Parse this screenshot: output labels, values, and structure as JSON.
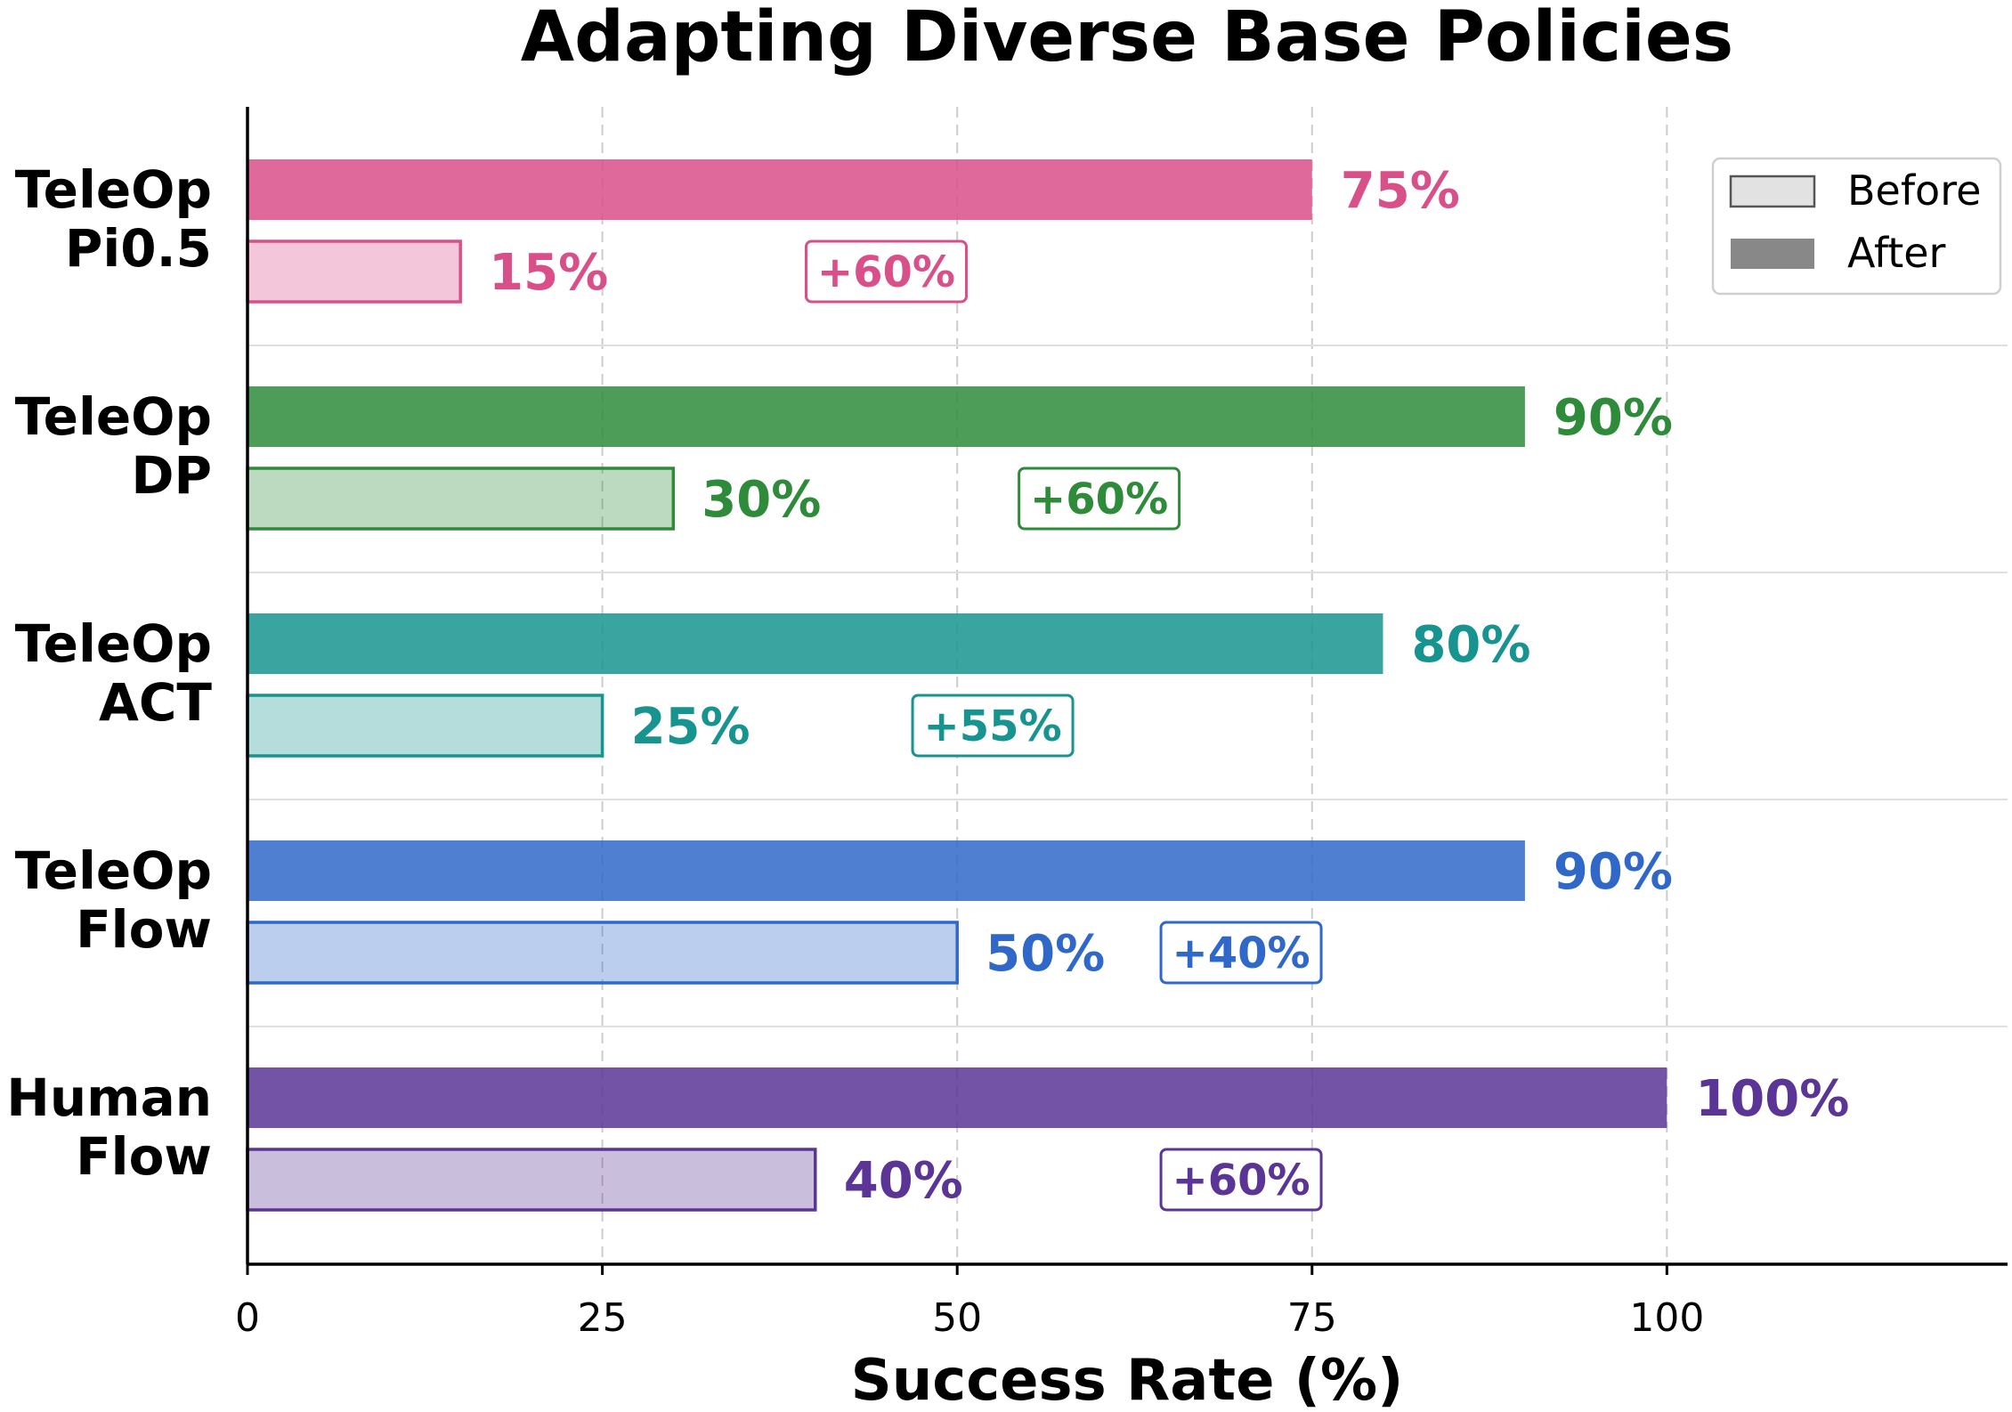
{
  "chart_data": {
    "type": "bar",
    "orientation": "horizontal",
    "title": "Adapting Diverse Base Policies",
    "xlabel": "Success Rate (%)",
    "ylabel": "",
    "xlim": [
      0,
      124
    ],
    "xticks": [
      0,
      25,
      50,
      75,
      100
    ],
    "grid": "vertical dashed",
    "legend_position": "top-right",
    "categories": [
      {
        "line1": "TeleOp",
        "line2": "Pi0.5",
        "color": "#D94F8A"
      },
      {
        "line1": "TeleOp",
        "line2": "DP",
        "color": "#2E8B3A"
      },
      {
        "line1": "TeleOp",
        "line2": "ACT",
        "color": "#17948F"
      },
      {
        "line1": "TeleOp",
        "line2": "Flow",
        "color": "#2F68C8"
      },
      {
        "line1": "Human",
        "line2": "Flow",
        "color": "#5A3596"
      }
    ],
    "series": [
      {
        "name": "Before",
        "values": [
          15,
          30,
          25,
          50,
          40
        ],
        "labels": [
          "15%",
          "30%",
          "25%",
          "50%",
          "40%"
        ]
      },
      {
        "name": "After",
        "values": [
          75,
          90,
          80,
          90,
          100
        ],
        "labels": [
          "75%",
          "90%",
          "80%",
          "90%",
          "100%"
        ]
      }
    ],
    "deltas": [
      "+60%",
      "+60%",
      "+55%",
      "+40%",
      "+60%"
    ]
  }
}
